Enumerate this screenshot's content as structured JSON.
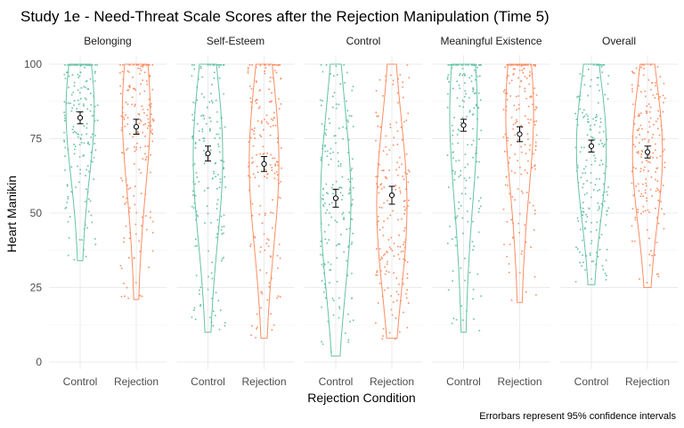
{
  "chart_data": {
    "type": "violin",
    "title": "Study 1e - Need-Threat Scale Scores after the Rejection Manipulation (Time 5)",
    "xlabel": "Rejection Condition",
    "ylabel": "Heart Manikin",
    "caption": "Errorbars represent 95% confidence intervals",
    "ylim": [
      0,
      100
    ],
    "yticks": [
      "0",
      "25",
      "50",
      "75",
      "100"
    ],
    "categories": [
      "Control",
      "Rejection"
    ],
    "colors": {
      "Control": "#66c2a5",
      "Rejection": "#fc8d62"
    },
    "grid": true,
    "legend": "none",
    "panels": [
      {
        "name": "Belonging",
        "groups": [
          {
            "condition": "Control",
            "mean": 82,
            "ci": [
              80,
              84
            ],
            "range": [
              34,
              100
            ],
            "mode": 88
          },
          {
            "condition": "Rejection",
            "mean": 79,
            "ci": [
              76.5,
              81.5
            ],
            "range": [
              21,
              100
            ],
            "mode": 88
          }
        ]
      },
      {
        "name": "Self-Esteem",
        "groups": [
          {
            "condition": "Control",
            "mean": 70,
            "ci": [
              67.5,
              72.5
            ],
            "range": [
              10,
              100
            ],
            "mode": 72
          },
          {
            "condition": "Rejection",
            "mean": 66.5,
            "ci": [
              64,
              69
            ],
            "range": [
              8,
              100
            ],
            "mode": 70
          }
        ]
      },
      {
        "name": "Control",
        "groups": [
          {
            "condition": "Control",
            "mean": 55,
            "ci": [
              52,
              58
            ],
            "range": [
              2,
              100
            ],
            "mode": 55
          },
          {
            "condition": "Rejection",
            "mean": 56,
            "ci": [
              53,
              59
            ],
            "range": [
              8,
              100
            ],
            "mode": 52
          }
        ]
      },
      {
        "name": "Meaningful Existence",
        "groups": [
          {
            "condition": "Control",
            "mean": 79.5,
            "ci": [
              77.5,
              81.5
            ],
            "range": [
              10,
              100
            ],
            "mode": 88
          },
          {
            "condition": "Rejection",
            "mean": 76.5,
            "ci": [
              74,
              79
            ],
            "range": [
              20,
              100
            ],
            "mode": 88
          }
        ]
      },
      {
        "name": "Overall",
        "groups": [
          {
            "condition": "Control",
            "mean": 72.5,
            "ci": [
              70.5,
              74.5
            ],
            "range": [
              26,
              100
            ],
            "mode": 74
          },
          {
            "condition": "Rejection",
            "mean": 70.5,
            "ci": [
              68.5,
              72.5
            ],
            "range": [
              25,
              100
            ],
            "mode": 72
          }
        ]
      }
    ]
  }
}
